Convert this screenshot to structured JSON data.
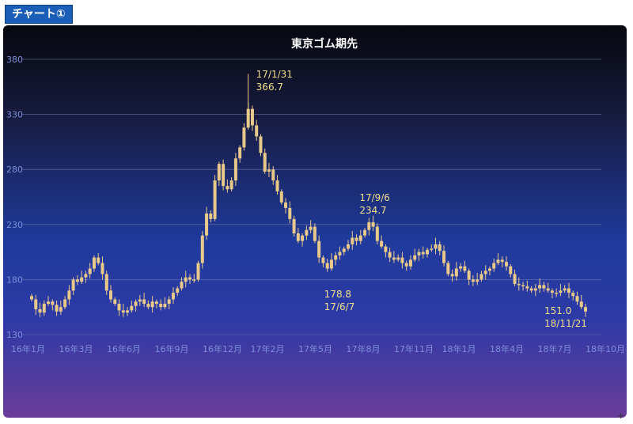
{
  "badge": {
    "label": "チャート①"
  },
  "colors": {
    "candle": "#e9c98a",
    "grid": "#6f7aa8",
    "axis_text": "#7d8fd8",
    "annotation": "#f0e08a",
    "title": "#ffffff"
  },
  "chart_data": {
    "type": "candlestick",
    "title": "東京ゴム期先",
    "xlabel": "",
    "ylabel": "",
    "ylim": [
      130,
      380
    ],
    "y_ticks": [
      130,
      180,
      230,
      280,
      330,
      380
    ],
    "grid": true,
    "x_ticks": [
      "16年1月",
      "16年3月",
      "16年6月",
      "16年9月",
      "16年12月",
      "17年2月",
      "17年5月",
      "17年8月",
      "17年11月",
      "18年1月",
      "18年4月",
      "18年7月",
      "18年10月"
    ],
    "series": [
      {
        "values": [
          162,
          153,
          150,
          158,
          160,
          157,
          151,
          155,
          162,
          170,
          180,
          178,
          182,
          185,
          190,
          200,
          195,
          185,
          170,
          162,
          158,
          152,
          150,
          152,
          156,
          160,
          162,
          158,
          155,
          160,
          158,
          155,
          158,
          162,
          168,
          172,
          178,
          182,
          180,
          180,
          195,
          220,
          240,
          235,
          270,
          285,
          265,
          262,
          270,
          290,
          300,
          318,
          335,
          320,
          310,
          295,
          278,
          280,
          270,
          260,
          250,
          245,
          235,
          222,
          215,
          220,
          225,
          228,
          215,
          200,
          195,
          190,
          198,
          202,
          205,
          208,
          212,
          218,
          215,
          220,
          225,
          232,
          228,
          215,
          210,
          205,
          200,
          198,
          200,
          195,
          192,
          198,
          202,
          205,
          203,
          207,
          208,
          212,
          206,
          195,
          185,
          183,
          190,
          192,
          188,
          180,
          178,
          180,
          185,
          188,
          190,
          195,
          198,
          196,
          192,
          185,
          176,
          175,
          174,
          172,
          170,
          172,
          175,
          172,
          170,
          168,
          168,
          170,
          172,
          168,
          165,
          160,
          155,
          151
        ]
      }
    ],
    "annotations": [
      {
        "label": "17/1/31",
        "value": "366.7"
      },
      {
        "label": "17/9/6",
        "value": "234.7"
      },
      {
        "label": "17/6/7",
        "value": "178.8"
      },
      {
        "label": "18/11/21",
        "value": "151.0"
      }
    ]
  }
}
